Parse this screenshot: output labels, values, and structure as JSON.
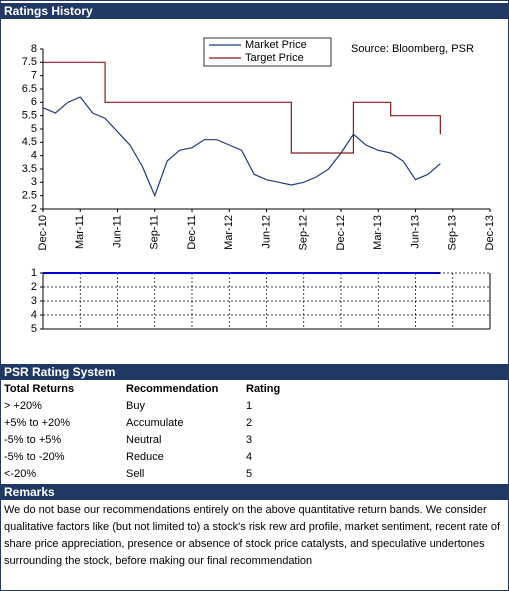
{
  "header": {
    "title": "Ratings History"
  },
  "chart_data": [
    {
      "type": "line",
      "legend": "top",
      "source": "Source: Bloomberg, PSR",
      "x": [
        "Dec-10",
        null,
        null,
        "Mar-11",
        null,
        null,
        "Jun-11",
        null,
        null,
        "Sep-11",
        null,
        null,
        "Dec-11",
        null,
        null,
        "Mar-12",
        null,
        null,
        "Jun-12",
        null,
        null,
        "Sep-12",
        null,
        null,
        "Dec-12",
        null,
        null,
        "Mar-13",
        null,
        null,
        "Jun-13",
        null,
        null,
        "Sep-13",
        null,
        null,
        "Dec-13"
      ],
      "ylim": [
        2,
        8
      ],
      "yticks": [
        2,
        2.5,
        3,
        3.5,
        4,
        4.5,
        5,
        5.5,
        6,
        6.5,
        7,
        7.5,
        8
      ],
      "series": [
        {
          "name": "Market Price",
          "color": "#1f3d7a",
          "values": [
            5.8,
            5.6,
            6.0,
            6.2,
            5.6,
            5.4,
            4.9,
            4.4,
            3.6,
            2.5,
            3.8,
            4.2,
            4.3,
            4.6,
            4.6,
            4.4,
            4.2,
            3.3,
            3.1,
            3.0,
            2.9,
            3.0,
            3.2,
            3.5,
            4.1,
            4.8,
            4.4,
            4.2,
            4.1,
            3.8,
            3.1,
            3.3,
            3.7,
            null,
            null,
            null,
            null
          ]
        },
        {
          "name": "Target Price",
          "color": "#8b1a1a",
          "step": true,
          "values": [
            7.5,
            7.5,
            7.5,
            7.5,
            7.5,
            6,
            6,
            6,
            6,
            6,
            6,
            6,
            6,
            6,
            6,
            6,
            6,
            6,
            6,
            6,
            4.1,
            4.1,
            4.1,
            4.1,
            4.1,
            6,
            6,
            6,
            5.5,
            5.5,
            5.5,
            5.5,
            4.8,
            null,
            null,
            null,
            null
          ]
        }
      ]
    },
    {
      "type": "line",
      "ylim": [
        1,
        5
      ],
      "yticks": [
        1,
        2,
        3,
        4,
        5
      ],
      "grid": true,
      "inverted": true,
      "series": [
        {
          "color": "#0000cc",
          "values": [
            1,
            1,
            1,
            1,
            1,
            1,
            1,
            1,
            1,
            1,
            1,
            1,
            1,
            1,
            1,
            1,
            1,
            1,
            1,
            1,
            1,
            1,
            1,
            1,
            1,
            1,
            1,
            1,
            1,
            1,
            1,
            1,
            1,
            null,
            null,
            null,
            null
          ]
        }
      ]
    }
  ],
  "table": {
    "title": "PSR Rating System",
    "headers": [
      "Total Returns",
      "Recommendation",
      "Rating"
    ],
    "rows": [
      [
        "> +20%",
        "Buy",
        "1"
      ],
      [
        "+5% to +20%",
        "Accumulate",
        "2"
      ],
      [
        "-5% to +5%",
        "Neutral",
        "3"
      ],
      [
        "-5% to -20%",
        "Reduce",
        "4"
      ],
      [
        "<-20%",
        "Sell",
        "5"
      ]
    ]
  },
  "remarks": {
    "title": "Remarks",
    "text": "We do not base our recommendations entirely on the  above quantitative return bands. We consider qualitative factors like (but not limited to) a stock's risk rew ard profile, market sentiment, recent rate of share price appreciation, presence or absence of stock price catalysts, and speculative undertones surrounding the stock, before making our final recommendation"
  }
}
